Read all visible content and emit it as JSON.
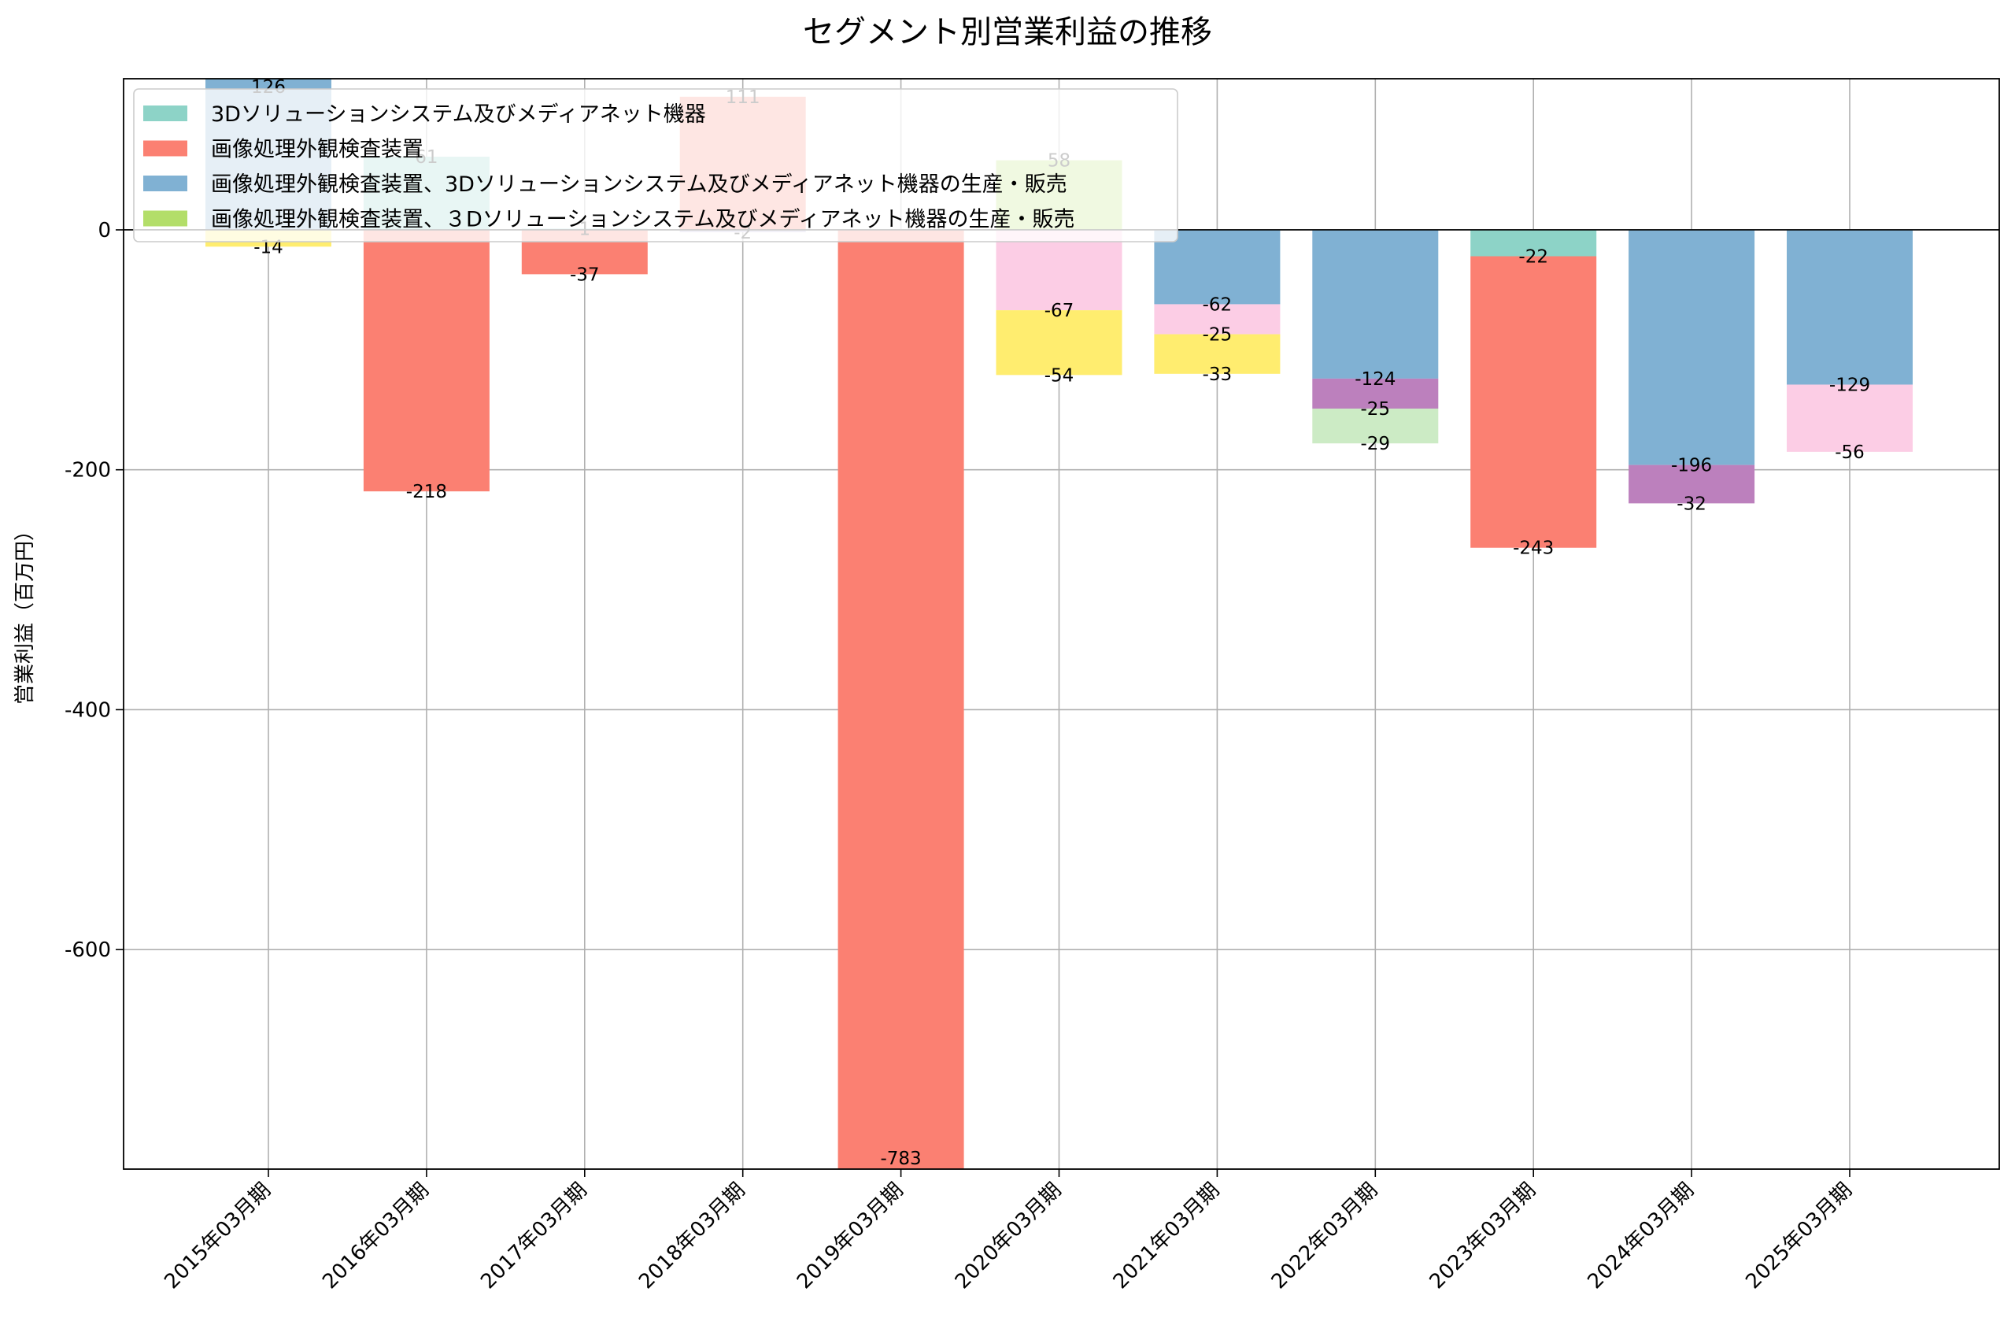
{
  "chart_data": {
    "type": "bar",
    "stacked": true,
    "title": "セグメント別営業利益の推移",
    "xlabel": "",
    "ylabel": "営業利益（百万円）",
    "ylim": [
      -783,
      126
    ],
    "yticks": [
      -600,
      -400,
      -200,
      0
    ],
    "ytick_labels": [
      "-600",
      "-400",
      "-200",
      "0"
    ],
    "grid": true,
    "legend_position": "top-left",
    "categories": [
      "2015年03月期",
      "2016年03月期",
      "2017年03月期",
      "2018年03月期",
      "2019年03月期",
      "2020年03月期",
      "2021年03月期",
      "2022年03月期",
      "2023年03月期",
      "2024年03月期",
      "2025年03月期"
    ],
    "series": [
      {
        "name": "3Dソリューションシステム及びメディアネット機器",
        "color": "#8dd3c7",
        "in_legend": true,
        "values": [
          null,
          61,
          1,
          null,
          null,
          null,
          null,
          null,
          -22,
          null,
          null
        ],
        "labels": [
          null,
          "61",
          "1",
          null,
          null,
          null,
          null,
          null,
          "-22",
          null,
          null
        ]
      },
      {
        "name": "画像処理外観検査装置",
        "color": "#fb8072",
        "in_legend": true,
        "values": [
          null,
          -218,
          -37,
          111,
          -783,
          null,
          null,
          null,
          -243,
          null,
          null
        ],
        "labels": [
          null,
          "-218",
          "-37",
          "111",
          "-783",
          null,
          null,
          null,
          "-243",
          null,
          null
        ]
      },
      {
        "name": "画像処理外観検査装置、3Dソリューションシステム及びメディアネット機器の生産・販売",
        "color": "#80b1d3",
        "in_legend": true,
        "values": [
          126,
          null,
          null,
          null,
          null,
          null,
          -62,
          -124,
          null,
          -196,
          -129
        ],
        "labels": [
          "126",
          null,
          null,
          null,
          null,
          null,
          "-62",
          "-124",
          null,
          "-196",
          "-129"
        ]
      },
      {
        "name": "画像処理外観検査装置、３Dソリューションシステム及びメディアネット機器の生産・販売",
        "color": "#b3de69",
        "in_legend": true,
        "values": [
          null,
          null,
          null,
          null,
          null,
          58,
          null,
          null,
          null,
          null,
          null
        ],
        "labels": [
          null,
          null,
          null,
          null,
          null,
          "58",
          null,
          null,
          null,
          null,
          null
        ]
      },
      {
        "name": "",
        "color": "#bebada",
        "in_legend": false,
        "values": [
          null,
          null,
          null,
          -2,
          null,
          null,
          null,
          null,
          null,
          null,
          null
        ],
        "labels": [
          null,
          null,
          null,
          "-2",
          null,
          null,
          null,
          null,
          null,
          null,
          null
        ]
      },
      {
        "name": "",
        "color": "#fccde5",
        "in_legend": false,
        "values": [
          null,
          null,
          null,
          null,
          null,
          -67,
          -25,
          null,
          null,
          null,
          -56
        ],
        "labels": [
          null,
          null,
          null,
          null,
          null,
          "-67",
          "-25",
          null,
          null,
          null,
          "-56"
        ]
      },
      {
        "name": "",
        "color": "#bc80bd",
        "in_legend": false,
        "values": [
          null,
          null,
          null,
          null,
          null,
          null,
          null,
          -25,
          null,
          -32,
          null
        ],
        "labels": [
          null,
          null,
          null,
          null,
          null,
          null,
          null,
          "-25",
          null,
          "-32",
          null
        ]
      },
      {
        "name": "",
        "color": "#ccebc5",
        "in_legend": false,
        "values": [
          null,
          null,
          null,
          null,
          null,
          null,
          null,
          -29,
          null,
          null,
          null
        ],
        "labels": [
          null,
          null,
          null,
          null,
          null,
          null,
          null,
          "-29",
          null,
          null,
          null
        ]
      },
      {
        "name": "",
        "color": "#ffed6f",
        "in_legend": false,
        "values": [
          -14,
          null,
          null,
          null,
          null,
          -54,
          -33,
          null,
          null,
          null,
          null
        ],
        "labels": [
          "-14",
          null,
          null,
          null,
          null,
          "-54",
          "-33",
          null,
          null,
          null,
          null
        ]
      }
    ]
  }
}
